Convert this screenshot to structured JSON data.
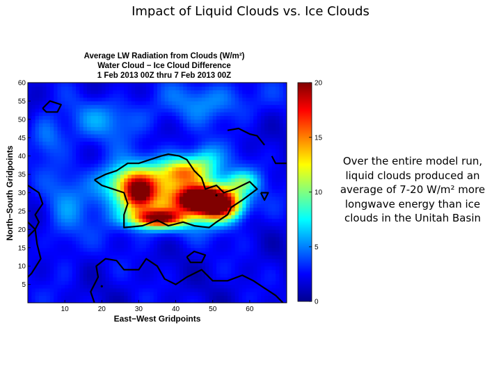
{
  "slide": {
    "title": "Impact of Liquid Clouds vs. Ice Clouds",
    "caption": "Over the entire model run, liquid clouds produced an average of 7-20 W/m² more longwave energy than ice clouds in the Unitah Basin"
  },
  "chart_data": {
    "type": "heatmap",
    "title_lines": [
      "Average LW Radiation from Clouds (W/m²)",
      "Water Cloud − Ice Cloud Difference",
      "1 Feb 2013 00Z thru 7 Feb 2013 00Z"
    ],
    "xlabel": "East−West Gridpoints",
    "ylabel": "North−South Gridpoints",
    "xlim": [
      0,
      70
    ],
    "ylim": [
      0,
      60
    ],
    "x_ticks": [
      10,
      20,
      30,
      40,
      50,
      60
    ],
    "y_ticks": [
      5,
      10,
      15,
      20,
      25,
      30,
      35,
      40,
      45,
      50,
      55,
      60
    ],
    "colorbar": {
      "range": [
        0,
        20
      ],
      "ticks": [
        0,
        5,
        10,
        15,
        20
      ],
      "colormap": "jet",
      "stops": [
        "#00008f",
        "#0000ff",
        "#0080ff",
        "#00ffff",
        "#80ff80",
        "#ffff00",
        "#ff8000",
        "#ff0000",
        "#800000"
      ]
    },
    "background_level": 2,
    "features": [
      {
        "x": 38,
        "y": 30,
        "value": 9,
        "sx": 12,
        "sy": 6
      },
      {
        "x": 28,
        "y": 33,
        "value": 7,
        "sx": 5,
        "sy": 3
      },
      {
        "x": 52,
        "y": 27,
        "value": 17,
        "sx": 4,
        "sy": 3
      },
      {
        "x": 46,
        "y": 28,
        "value": 16,
        "sx": 4,
        "sy": 2.5
      },
      {
        "x": 35,
        "y": 23,
        "value": 15,
        "sx": 5,
        "sy": 1.8
      },
      {
        "x": 30,
        "y": 29,
        "value": 10,
        "sx": 3,
        "sy": 3
      },
      {
        "x": 42,
        "y": 36,
        "value": 8,
        "sx": 4,
        "sy": 2.5
      },
      {
        "x": 48,
        "y": 39,
        "value": 4,
        "sx": 3,
        "sy": 3
      },
      {
        "x": 58,
        "y": 33,
        "value": 5,
        "sx": 3,
        "sy": 2
      },
      {
        "x": 22,
        "y": 50,
        "value": 3,
        "sx": 8,
        "sy": 4
      },
      {
        "x": 50,
        "y": 55,
        "value": 3,
        "sx": 10,
        "sy": 4
      },
      {
        "x": 10,
        "y": 25,
        "value": 2,
        "sx": 4,
        "sy": 12
      },
      {
        "x": 5,
        "y": 45,
        "value": 3,
        "sx": 3,
        "sy": 4
      }
    ],
    "contours": [
      [
        [
          18,
          33.5
        ],
        [
          21,
          35
        ],
        [
          24,
          36
        ],
        [
          27,
          38
        ],
        [
          30,
          38
        ],
        [
          33,
          39
        ],
        [
          36,
          40
        ],
        [
          38,
          40.5
        ],
        [
          41,
          40
        ],
        [
          43,
          39
        ],
        [
          45,
          36
        ],
        [
          47,
          34
        ],
        [
          48,
          31
        ],
        [
          51,
          32
        ],
        [
          53,
          30
        ],
        [
          56,
          31
        ],
        [
          58,
          32
        ],
        [
          60,
          33
        ],
        [
          62,
          31
        ],
        [
          58,
          28
        ],
        [
          55,
          26
        ],
        [
          54,
          24
        ],
        [
          51,
          22
        ],
        [
          49,
          20.5
        ],
        [
          45,
          21
        ],
        [
          42,
          22
        ],
        [
          38,
          21
        ],
        [
          35,
          22.5
        ],
        [
          31,
          21
        ],
        [
          26,
          20.5
        ],
        [
          26,
          24
        ],
        [
          27,
          27
        ],
        [
          26,
          30
        ],
        [
          23,
          31
        ],
        [
          20,
          32
        ],
        [
          18,
          33.5
        ]
      ],
      [
        [
          18,
          0
        ],
        [
          17,
          3
        ],
        [
          19,
          7
        ],
        [
          18.5,
          10
        ],
        [
          21,
          12
        ],
        [
          24,
          11.5
        ],
        [
          26,
          9
        ],
        [
          30,
          9
        ],
        [
          32,
          12
        ],
        [
          35,
          10
        ],
        [
          37,
          6.5
        ],
        [
          40,
          5
        ],
        [
          43,
          7
        ],
        [
          47,
          9
        ],
        [
          50,
          6
        ],
        [
          54,
          6
        ],
        [
          58,
          7.5
        ],
        [
          61,
          6
        ],
        [
          64,
          4
        ],
        [
          67,
          2
        ],
        [
          69,
          0
        ]
      ],
      [
        [
          0,
          32
        ],
        [
          3,
          30
        ],
        [
          4,
          27
        ],
        [
          2,
          24
        ],
        [
          3,
          22
        ],
        [
          2,
          20
        ],
        [
          2.5,
          16
        ],
        [
          3.5,
          12
        ],
        [
          1,
          8
        ],
        [
          0,
          7
        ]
      ],
      [
        [
          0,
          22
        ],
        [
          2,
          20
        ],
        [
          0,
          18
        ]
      ],
      [
        [
          43,
          12.5
        ],
        [
          45,
          14
        ],
        [
          48,
          13
        ],
        [
          47,
          11
        ],
        [
          44,
          11
        ],
        [
          43,
          12.5
        ]
      ],
      [
        [
          4,
          53
        ],
        [
          6,
          55
        ],
        [
          9,
          54
        ],
        [
          8,
          52
        ],
        [
          5,
          52
        ],
        [
          4,
          53
        ]
      ],
      [
        [
          54,
          47
        ],
        [
          57,
          47.5
        ],
        [
          60,
          46
        ],
        [
          62,
          45.5
        ],
        [
          64,
          43
        ]
      ],
      [
        [
          66,
          40
        ],
        [
          67,
          38
        ],
        [
          70,
          38
        ]
      ],
      [
        [
          63,
          30
        ],
        [
          64,
          28
        ],
        [
          65,
          30
        ],
        [
          63,
          30
        ]
      ]
    ],
    "contour_dots": [
      [
        51,
        29.3
      ],
      [
        20,
        4.5
      ]
    ]
  }
}
